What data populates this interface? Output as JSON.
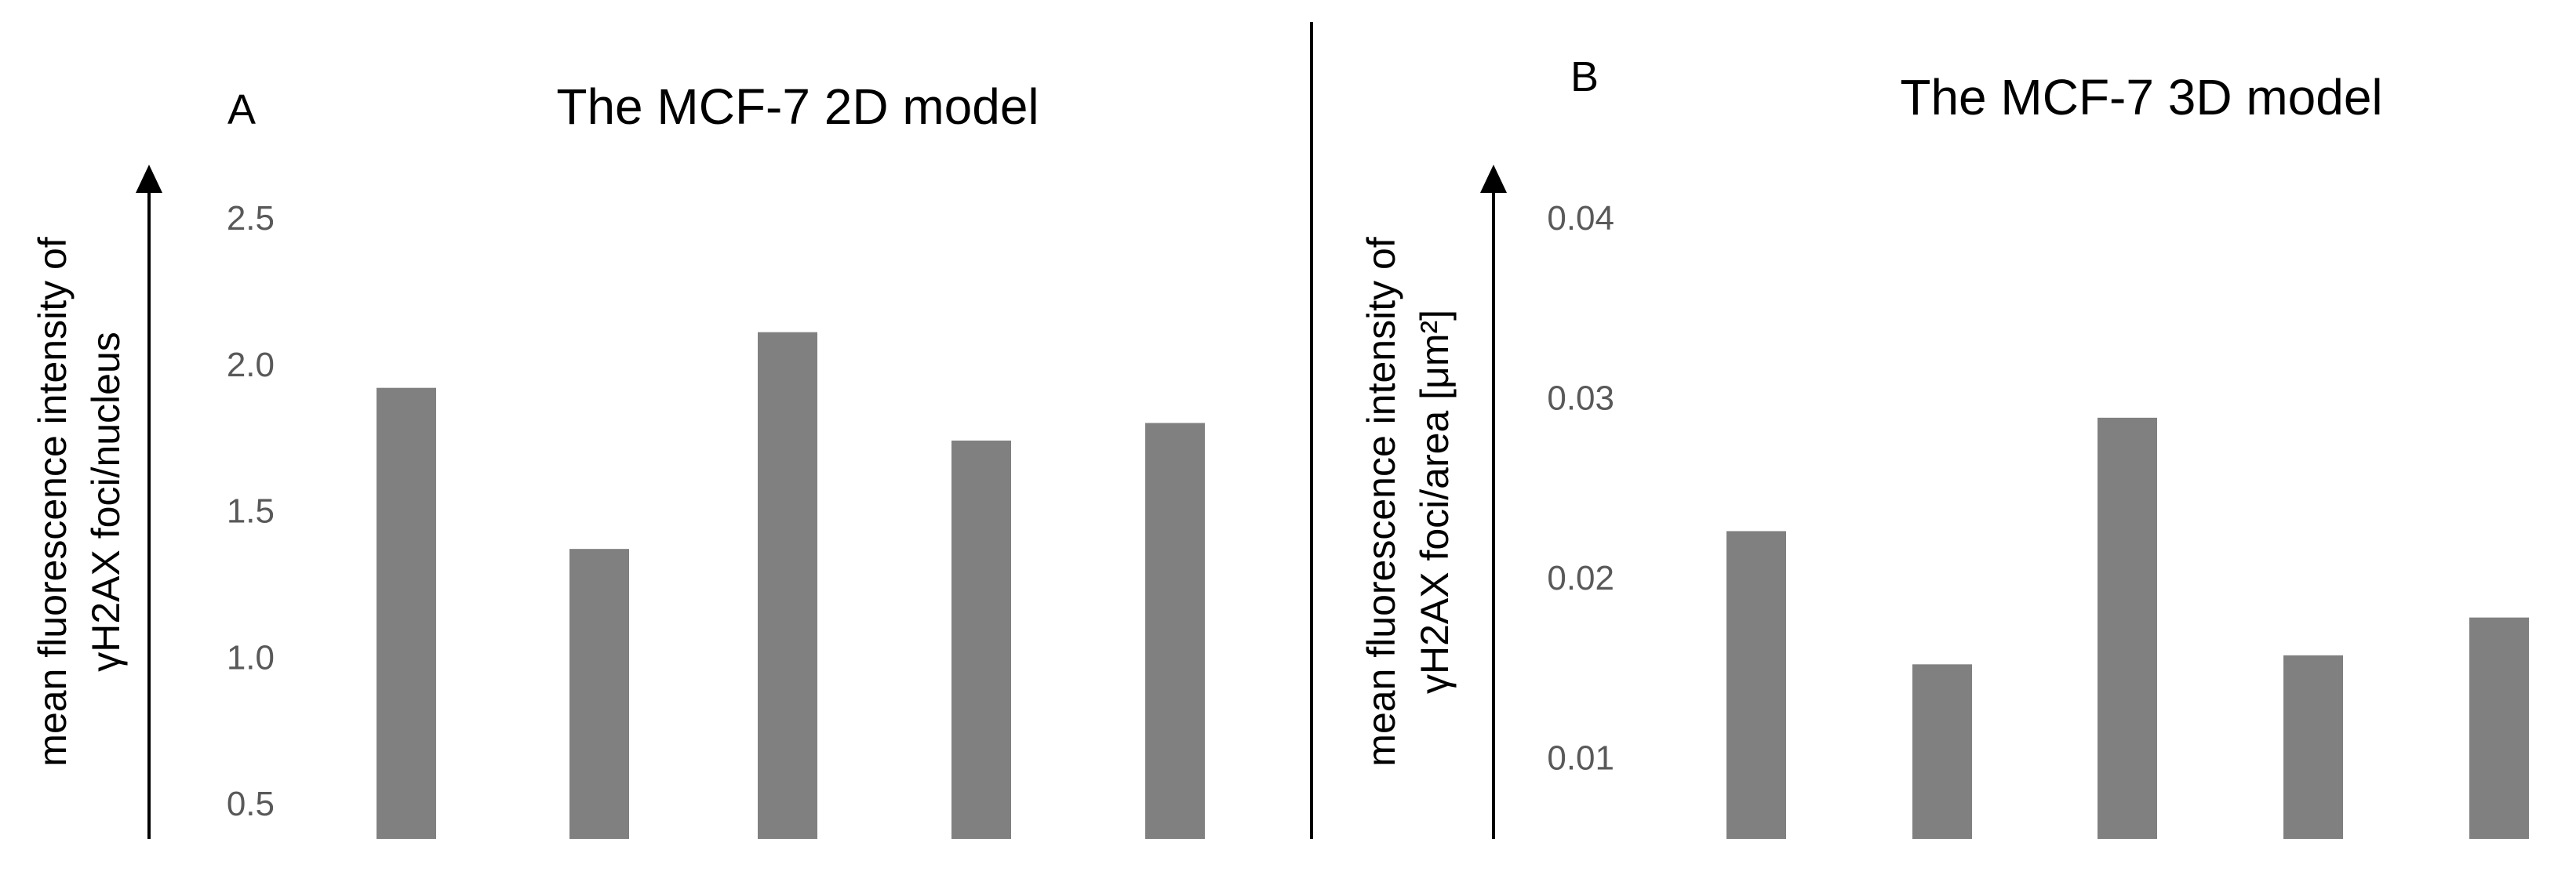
{
  "colors": {
    "bar": "#808080",
    "axis": "#000000",
    "tick_text": "#595959",
    "divider": "#000000"
  },
  "chart_data": [
    {
      "type": "bar",
      "panel_label": "A",
      "title": "The MCF-7 2D model",
      "ylabel_lines": [
        "mean fluorescence intensity of",
        "γH2AX foci/nucleus"
      ],
      "yticks": [
        "0.5",
        "1.0",
        "1.5",
        "2.0",
        "2.5"
      ],
      "ylim": [
        0.38,
        2.5
      ],
      "categories": [
        "",
        "",
        "",
        "",
        ""
      ],
      "values": [
        1.92,
        1.37,
        2.11,
        1.74,
        1.8
      ],
      "grid": false
    },
    {
      "type": "bar",
      "panel_label": "B",
      "title": "The MCF-7 3D model",
      "ylabel_lines": [
        "mean fluorescence intensity of",
        "γH2AX foci/area [μm²]"
      ],
      "yticks": [
        "0.01",
        "0.02",
        "0.03",
        "0.04"
      ],
      "ylim": [
        0.0055,
        0.04
      ],
      "categories": [
        "",
        "",
        "",
        "",
        ""
      ],
      "values": [
        0.0226,
        0.0152,
        0.0289,
        0.0157,
        0.0178
      ],
      "grid": false
    }
  ]
}
